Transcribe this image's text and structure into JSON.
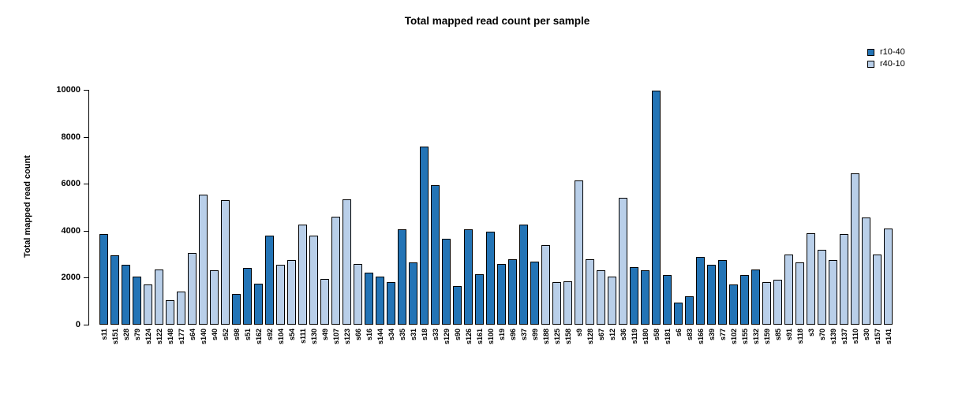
{
  "chart_data": {
    "type": "bar",
    "title": "Total mapped read count per sample",
    "xlabel": "",
    "ylabel": "Total mapped read count",
    "ylim": [
      0,
      10000
    ],
    "yticks": [
      0,
      2000,
      4000,
      6000,
      8000,
      10000
    ],
    "grid": false,
    "legend_position": "top-right",
    "series": [
      {
        "name": "r10-40",
        "color": "#2374b6"
      },
      {
        "name": "r40-10",
        "color": "#b9cfe9"
      }
    ],
    "bars": [
      {
        "sample": "s11",
        "value": 3850,
        "group": "r10-40"
      },
      {
        "sample": "s151",
        "value": 2950,
        "group": "r10-40"
      },
      {
        "sample": "s28",
        "value": 2550,
        "group": "r10-40"
      },
      {
        "sample": "s79",
        "value": 2050,
        "group": "r10-40"
      },
      {
        "sample": "s124",
        "value": 1700,
        "group": "r40-10"
      },
      {
        "sample": "s122",
        "value": 2350,
        "group": "r40-10"
      },
      {
        "sample": "s148",
        "value": 1050,
        "group": "r40-10"
      },
      {
        "sample": "s177",
        "value": 1400,
        "group": "r40-10"
      },
      {
        "sample": "s64",
        "value": 3050,
        "group": "r40-10"
      },
      {
        "sample": "s140",
        "value": 5550,
        "group": "r40-10"
      },
      {
        "sample": "s40",
        "value": 2300,
        "group": "r40-10"
      },
      {
        "sample": "s52",
        "value": 5300,
        "group": "r40-10"
      },
      {
        "sample": "s98",
        "value": 1300,
        "group": "r10-40"
      },
      {
        "sample": "s51",
        "value": 2400,
        "group": "r10-40"
      },
      {
        "sample": "s162",
        "value": 1750,
        "group": "r10-40"
      },
      {
        "sample": "s92",
        "value": 3800,
        "group": "r10-40"
      },
      {
        "sample": "s104",
        "value": 2550,
        "group": "r40-10"
      },
      {
        "sample": "s54",
        "value": 2750,
        "group": "r40-10"
      },
      {
        "sample": "s111",
        "value": 4250,
        "group": "r40-10"
      },
      {
        "sample": "s130",
        "value": 3800,
        "group": "r40-10"
      },
      {
        "sample": "s49",
        "value": 1950,
        "group": "r40-10"
      },
      {
        "sample": "s107",
        "value": 4600,
        "group": "r40-10"
      },
      {
        "sample": "s123",
        "value": 5350,
        "group": "r40-10"
      },
      {
        "sample": "s66",
        "value": 2600,
        "group": "r40-10"
      },
      {
        "sample": "s16",
        "value": 2200,
        "group": "r10-40"
      },
      {
        "sample": "s144",
        "value": 2050,
        "group": "r10-40"
      },
      {
        "sample": "s34",
        "value": 1800,
        "group": "r10-40"
      },
      {
        "sample": "s35",
        "value": 4050,
        "group": "r10-40"
      },
      {
        "sample": "s31",
        "value": 2650,
        "group": "r10-40"
      },
      {
        "sample": "s18",
        "value": 7600,
        "group": "r10-40"
      },
      {
        "sample": "s33",
        "value": 5950,
        "group": "r10-40"
      },
      {
        "sample": "s129",
        "value": 3650,
        "group": "r10-40"
      },
      {
        "sample": "s90",
        "value": 1650,
        "group": "r10-40"
      },
      {
        "sample": "s126",
        "value": 4050,
        "group": "r10-40"
      },
      {
        "sample": "s161",
        "value": 2150,
        "group": "r10-40"
      },
      {
        "sample": "s100",
        "value": 3950,
        "group": "r10-40"
      },
      {
        "sample": "s19",
        "value": 2600,
        "group": "r10-40"
      },
      {
        "sample": "s96",
        "value": 2800,
        "group": "r10-40"
      },
      {
        "sample": "s37",
        "value": 4250,
        "group": "r10-40"
      },
      {
        "sample": "s99",
        "value": 2700,
        "group": "r10-40"
      },
      {
        "sample": "s188",
        "value": 3400,
        "group": "r40-10"
      },
      {
        "sample": "s125",
        "value": 1800,
        "group": "r40-10"
      },
      {
        "sample": "s158",
        "value": 1850,
        "group": "r40-10"
      },
      {
        "sample": "s9",
        "value": 6150,
        "group": "r40-10"
      },
      {
        "sample": "s128",
        "value": 2800,
        "group": "r40-10"
      },
      {
        "sample": "s67",
        "value": 2300,
        "group": "r40-10"
      },
      {
        "sample": "s12",
        "value": 2050,
        "group": "r40-10"
      },
      {
        "sample": "s36",
        "value": 5400,
        "group": "r40-10"
      },
      {
        "sample": "s119",
        "value": 2450,
        "group": "r10-40"
      },
      {
        "sample": "s180",
        "value": 2300,
        "group": "r10-40"
      },
      {
        "sample": "s58",
        "value": 9950,
        "group": "r10-40"
      },
      {
        "sample": "s181",
        "value": 2100,
        "group": "r10-40"
      },
      {
        "sample": "s6",
        "value": 950,
        "group": "r10-40"
      },
      {
        "sample": "s83",
        "value": 1200,
        "group": "r10-40"
      },
      {
        "sample": "s166",
        "value": 2900,
        "group": "r10-40"
      },
      {
        "sample": "s39",
        "value": 2550,
        "group": "r10-40"
      },
      {
        "sample": "s77",
        "value": 2750,
        "group": "r10-40"
      },
      {
        "sample": "s102",
        "value": 1700,
        "group": "r10-40"
      },
      {
        "sample": "s155",
        "value": 2100,
        "group": "r10-40"
      },
      {
        "sample": "s132",
        "value": 2350,
        "group": "r10-40"
      },
      {
        "sample": "s159",
        "value": 1800,
        "group": "r40-10"
      },
      {
        "sample": "s85",
        "value": 1900,
        "group": "r40-10"
      },
      {
        "sample": "s91",
        "value": 3000,
        "group": "r40-10"
      },
      {
        "sample": "s118",
        "value": 2650,
        "group": "r40-10"
      },
      {
        "sample": "s3",
        "value": 3900,
        "group": "r40-10"
      },
      {
        "sample": "s70",
        "value": 3200,
        "group": "r40-10"
      },
      {
        "sample": "s139",
        "value": 2750,
        "group": "r40-10"
      },
      {
        "sample": "s137",
        "value": 3850,
        "group": "r40-10"
      },
      {
        "sample": "s110",
        "value": 6450,
        "group": "r40-10"
      },
      {
        "sample": "s30",
        "value": 4550,
        "group": "r40-10"
      },
      {
        "sample": "s157",
        "value": 3000,
        "group": "r40-10"
      },
      {
        "sample": "s141",
        "value": 4100,
        "group": "r40-10"
      }
    ]
  }
}
